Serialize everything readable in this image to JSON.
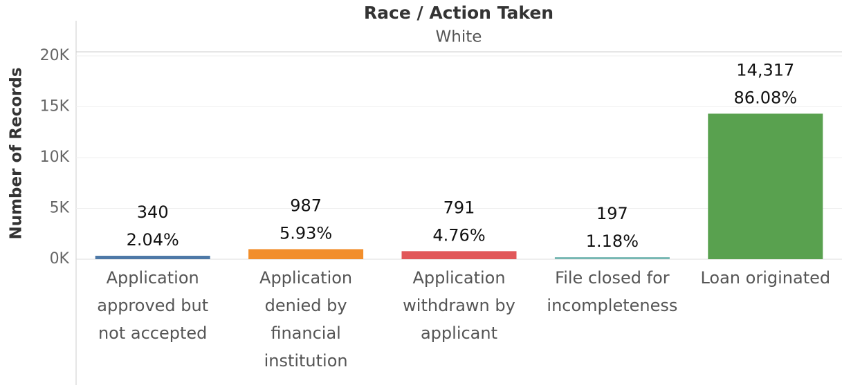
{
  "chart_data": {
    "type": "bar",
    "title": "Race / Action Taken",
    "subtitle": "White",
    "y_label": "Number of Records",
    "categories": [
      "Application approved but not accepted",
      "Application denied by financial institution",
      "Application withdrawn by applicant",
      "File closed for incompleteness",
      "Loan originated"
    ],
    "values": [
      340,
      987,
      791,
      197,
      14317
    ],
    "value_labels": [
      "340",
      "987",
      "791",
      "197",
      "14,317"
    ],
    "percent_labels": [
      "2.04%",
      "5.93%",
      "4.76%",
      "1.18%",
      "86.08%"
    ],
    "colors": [
      "#4e79a7",
      "#f28e2b",
      "#e15759",
      "#76b7b2",
      "#59a14f"
    ],
    "ylim": [
      0,
      20400
    ],
    "yticks": [
      {
        "value": 0,
        "label": "0K"
      },
      {
        "value": 5000,
        "label": "5K"
      },
      {
        "value": 10000,
        "label": "10K"
      },
      {
        "value": 15000,
        "label": "15K"
      },
      {
        "value": 20000,
        "label": "20K"
      }
    ],
    "grid": true
  }
}
